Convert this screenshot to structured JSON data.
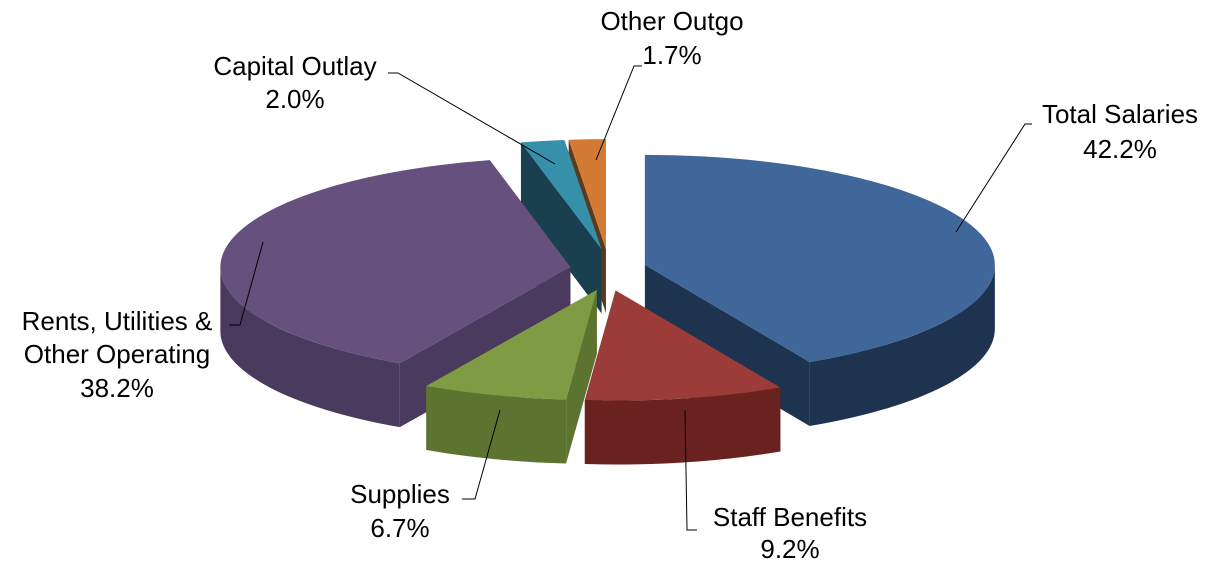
{
  "chart_data": {
    "type": "pie",
    "style": "3d-exploded",
    "title": "",
    "slices": [
      {
        "name": "Total Salaries",
        "value": 42.2,
        "label": "42.2%",
        "color": "#3F6799",
        "side_color": "#1E3350"
      },
      {
        "name": "Staff Benefits",
        "value": 9.2,
        "label": "9.2%",
        "color": "#9B3C38",
        "side_color": "#6A2220"
      },
      {
        "name": "Supplies",
        "value": 6.7,
        "label": "6.7%",
        "color": "#7F9B44",
        "side_color": "#5C7430"
      },
      {
        "name": "Rents, Utilities & Other Operating",
        "name_lines": [
          "Rents, Utilities &",
          "Other Operating"
        ],
        "value": 38.2,
        "label": "38.2%",
        "color": "#66507E",
        "side_color": "#4A3A5E"
      },
      {
        "name": "Capital Outlay",
        "value": 2.0,
        "label": "2.0%",
        "color": "#3690AA",
        "side_color": "#1A4050"
      },
      {
        "name": "Other Outgo",
        "value": 1.7,
        "label": "1.7%",
        "color": "#D37B34",
        "side_color": "#5A3A1E"
      }
    ]
  }
}
